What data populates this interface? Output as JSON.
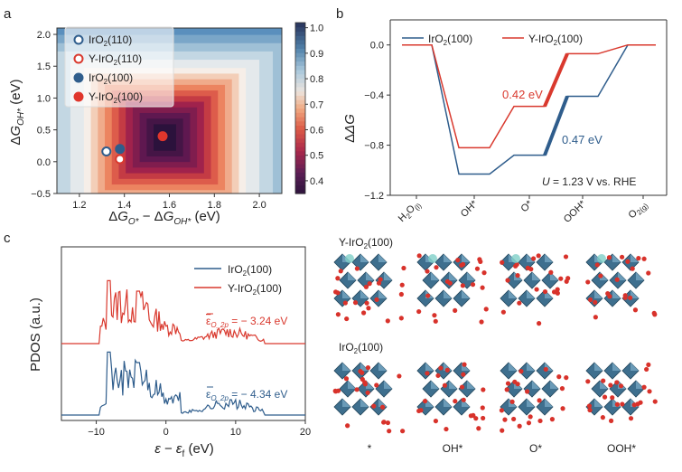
{
  "panels": {
    "a": "a",
    "b": "b",
    "c": "c"
  },
  "chart_data": [
    {
      "type": "heatmap",
      "panel": "a",
      "xlabel": "ΔG_O* − ΔG_OH* (eV)",
      "ylabel": "ΔG_OH* (eV)",
      "xlim": [
        1.1,
        2.1
      ],
      "ylim": [
        -0.5,
        2.1
      ],
      "xticks": [
        "1.2",
        "1.4",
        "1.6",
        "1.8",
        "2.0"
      ],
      "yticks": [
        "−0.5",
        "0.0",
        "0.5",
        "1.0",
        "1.5",
        "2.0"
      ],
      "colorbar": {
        "min": 0.35,
        "max": 1.02,
        "ticks": [
          "0.4",
          "0.5",
          "0.6",
          "0.7",
          "0.8",
          "0.9",
          "1.0"
        ]
      },
      "optimum": {
        "x": 1.58,
        "y": 0.38
      },
      "points": [
        {
          "name": "IrO2(110)",
          "x": 1.32,
          "y": 0.16,
          "filled": false,
          "color": "#2f5d8c"
        },
        {
          "name": "Y-IrO2(110)",
          "x": 1.38,
          "y": 0.04,
          "filled": false,
          "color": "#d9392e"
        },
        {
          "name": "IrO2(100)",
          "x": 1.38,
          "y": 0.2,
          "filled": true,
          "color": "#2f5d8c"
        },
        {
          "name": "Y-IrO2(100)",
          "x": 1.57,
          "y": 0.4,
          "filled": true,
          "color": "#e0362c"
        }
      ],
      "legend": [
        {
          "label": "IrO",
          "sub": "2",
          "tail": "(110)"
        },
        {
          "label": "Y-IrO",
          "sub": "2",
          "tail": "(110)"
        },
        {
          "label": "IrO",
          "sub": "2",
          "tail": "(100)"
        },
        {
          "label": "Y-IrO",
          "sub": "2",
          "tail": "(100)"
        }
      ]
    },
    {
      "type": "line",
      "panel": "b",
      "ylabel": "ΔG",
      "ylim": [
        -1.2,
        0.2
      ],
      "yticks": [
        "0.0",
        "−0.4",
        "−0.8",
        "−1.2"
      ],
      "categories": [
        "H2O(l)",
        "OH*",
        "O*",
        "OOH*",
        "O2(g)"
      ],
      "category_labels": [
        {
          "main": "H",
          "sub1": "2",
          "mid": "O",
          "sub2": "(l)"
        },
        {
          "main": "OH*"
        },
        {
          "main": "O*"
        },
        {
          "main": "OOH*"
        },
        {
          "main": "O",
          "sub1": "2(g)"
        }
      ],
      "series": [
        {
          "name": "IrO2(100)",
          "label": "IrO",
          "sub": "2",
          "tail": "(100)",
          "color": "#2f5d8c",
          "values": [
            0.0,
            -1.03,
            -0.88,
            -0.41,
            0.0
          ]
        },
        {
          "name": "Y-IrO2(100)",
          "label": "Y-IrO",
          "sub": "2",
          "tail": "(100)",
          "color": "#d9392e",
          "values": [
            0.0,
            -0.82,
            -0.49,
            -0.07,
            0.0
          ]
        }
      ],
      "annotations": {
        "red_barrier": "0.42 eV",
        "blue_barrier": "0.47 eV",
        "condition_u": "U",
        "condition_rest": " = 1.23 V vs. RHE"
      }
    },
    {
      "type": "line",
      "panel": "c",
      "xlabel": "ε − ε_f (eV)",
      "ylabel": "PDOS (a.u.)",
      "xlim": [
        -15,
        20
      ],
      "xticks": [
        "−10",
        "0",
        "10",
        "20"
      ],
      "series": [
        {
          "name": "IrO2(100)",
          "label": "IrO",
          "sub": "2",
          "tail": "(100)",
          "color": "#2f5d8c"
        },
        {
          "name": "Y-IrO2(100)",
          "label": "Y-IrO",
          "sub": "2",
          "tail": "(100)",
          "color": "#d9392e"
        }
      ],
      "band_centers": [
        {
          "series": "Y-IrO2(100)",
          "label": "ε",
          "sub": "O_2p",
          "value": " = − 3.24 eV"
        },
        {
          "series": "IrO2(100)",
          "label": "ε",
          "sub": "O_2p",
          "value": " = − 4.34 eV"
        }
      ]
    }
  ],
  "structures": {
    "title_y": {
      "label": "Y-IrO",
      "sub": "2",
      "tail": "(100)"
    },
    "title_ir": {
      "label": "IrO",
      "sub": "2",
      "tail": "(100)"
    },
    "labels": [
      "*",
      "OH*",
      "O*",
      "OOH*"
    ]
  }
}
